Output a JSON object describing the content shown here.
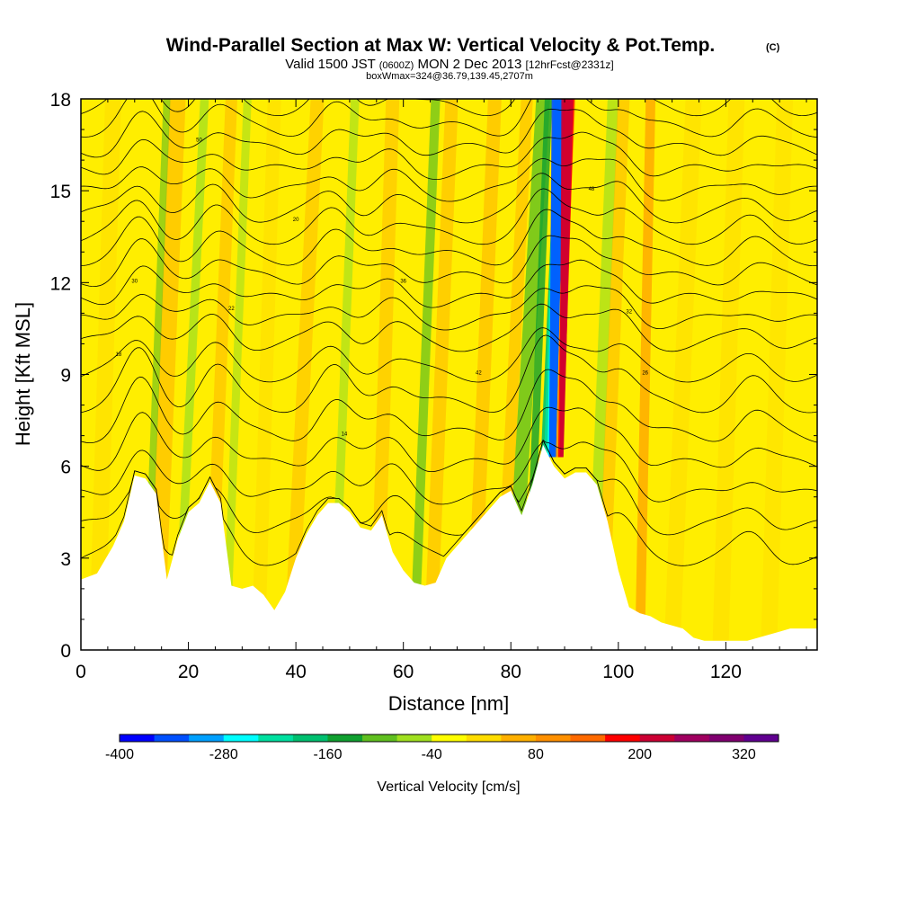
{
  "chart_data": {
    "type": "heatmap",
    "title": "Wind-Parallel Section at Max W: Vertical Velocity & Pot.Temp.",
    "title_mark": "(C)",
    "subtitle_parts": [
      "Valid 1500 JST",
      "(0600Z)",
      "MON 2 Dec 2013",
      "[12hrFcst@2331z]"
    ],
    "subtitle2": "boxWmax=324@36.79,139.45,2707m",
    "xlabel": "Distance [nm]",
    "ylabel": "Height [Kft MSL]",
    "xlim": [
      0,
      137
    ],
    "ylim": [
      0,
      18
    ],
    "x_ticks": [
      "0",
      "20",
      "40",
      "60",
      "80",
      "100",
      "120"
    ],
    "y_ticks": [
      "0",
      "3",
      "6",
      "9",
      "12",
      "15",
      "18"
    ],
    "colorbar": {
      "label": "Vertical Velocity [cm/s]",
      "tick_labels": [
        "-400",
        "-280",
        "-160",
        "-40",
        "80",
        "200",
        "320"
      ],
      "colors": [
        "#0000ff",
        "#0050ff",
        "#00a0ff",
        "#00ffff",
        "#00e0a0",
        "#00c070",
        "#10a030",
        "#60c020",
        "#a0e020",
        "#ffff00",
        "#ffdd00",
        "#ffb000",
        "#ff9000",
        "#ff6a00",
        "#ff0000",
        "#cc0033",
        "#a00060",
        "#800070",
        "#600090"
      ]
    },
    "terrain_kft": [
      [
        0,
        2.3
      ],
      [
        3,
        2.5
      ],
      [
        6,
        3.4
      ],
      [
        8,
        4.2
      ],
      [
        10,
        5.7
      ],
      [
        12,
        5.6
      ],
      [
        14,
        5.1
      ],
      [
        16,
        2.3
      ],
      [
        18,
        3.6
      ],
      [
        20,
        4.5
      ],
      [
        22,
        4.8
      ],
      [
        24,
        5.5
      ],
      [
        26,
        4.8
      ],
      [
        28,
        2.1
      ],
      [
        30,
        2.0
      ],
      [
        32,
        2.1
      ],
      [
        34,
        1.8
      ],
      [
        36,
        1.3
      ],
      [
        38,
        1.9
      ],
      [
        40,
        3.0
      ],
      [
        42,
        3.8
      ],
      [
        44,
        4.4
      ],
      [
        46,
        4.8
      ],
      [
        48,
        4.8
      ],
      [
        50,
        4.5
      ],
      [
        52,
        4.0
      ],
      [
        54,
        3.9
      ],
      [
        56,
        4.4
      ],
      [
        58,
        3.2
      ],
      [
        60,
        2.6
      ],
      [
        62,
        2.2
      ],
      [
        64,
        2.1
      ],
      [
        66,
        2.2
      ],
      [
        68,
        3.0
      ],
      [
        70,
        3.4
      ],
      [
        72,
        3.8
      ],
      [
        74,
        4.2
      ],
      [
        76,
        4.6
      ],
      [
        78,
        5.0
      ],
      [
        80,
        5.2
      ],
      [
        82,
        4.4
      ],
      [
        84,
        5.4
      ],
      [
        86,
        6.7
      ],
      [
        88,
        6.0
      ],
      [
        90,
        5.6
      ],
      [
        92,
        5.8
      ],
      [
        94,
        5.8
      ],
      [
        96,
        5.4
      ],
      [
        98,
        4.2
      ],
      [
        100,
        2.6
      ],
      [
        102,
        1.4
      ],
      [
        104,
        1.2
      ],
      [
        106,
        1.1
      ],
      [
        108,
        0.9
      ],
      [
        110,
        0.8
      ],
      [
        112,
        0.7
      ],
      [
        114,
        0.4
      ],
      [
        116,
        0.3
      ],
      [
        118,
        0.3
      ],
      [
        120,
        0.3
      ],
      [
        122,
        0.3
      ],
      [
        124,
        0.3
      ],
      [
        126,
        0.4
      ],
      [
        128,
        0.5
      ],
      [
        130,
        0.6
      ],
      [
        132,
        0.7
      ],
      [
        134,
        0.7
      ],
      [
        137,
        0.7
      ]
    ],
    "theta_contours_kft": [
      3,
      4,
      5,
      6,
      7,
      8,
      9,
      10,
      10.7,
      11.4,
      12.1,
      12.8,
      13.5,
      14.2,
      14.9,
      15.6,
      16.3,
      17,
      17.7
    ],
    "contour_labels": [
      "30",
      "50",
      "20",
      "36",
      "42",
      "48",
      "32",
      "26",
      "14",
      "18",
      "22"
    ],
    "max_updraft_cm_s": 324,
    "max_updraft_location": "36.79,139.45,2707m"
  }
}
